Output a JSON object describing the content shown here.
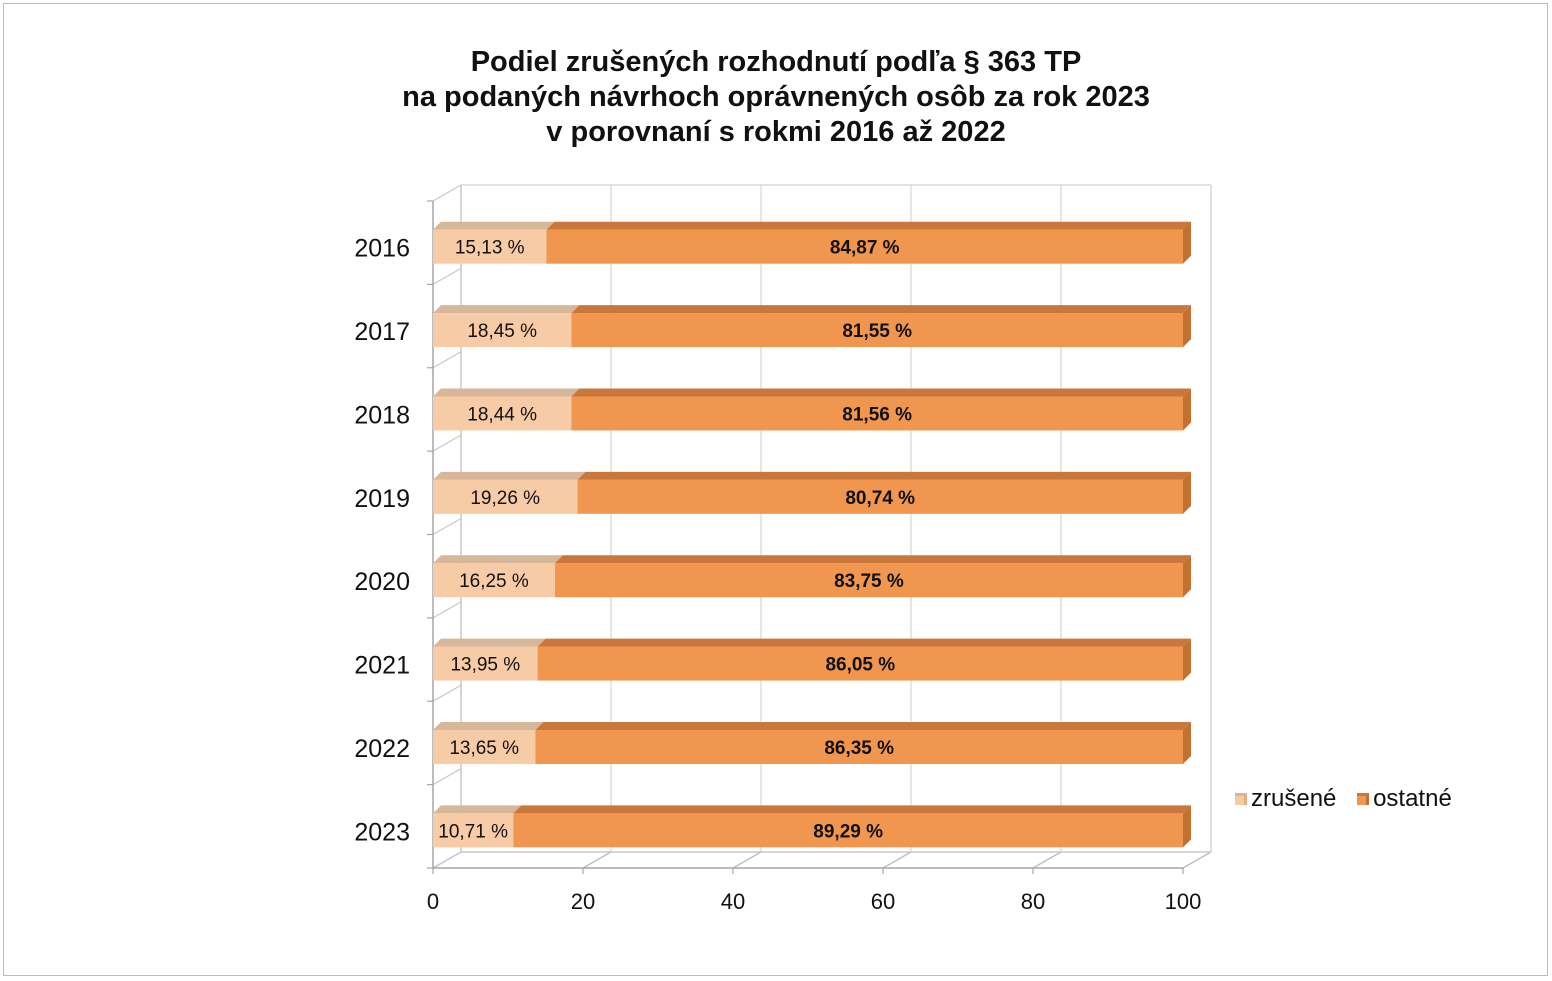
{
  "chart_data": {
    "type": "bar",
    "orientation": "horizontal",
    "stacked": true,
    "title_lines": [
      "Podiel zrušených rozhodnutí podľa § 363 TP",
      "na podaných návrhoch oprávnených osôb za rok 2023",
      "v porovnaní s rokmi 2016 až 2022"
    ],
    "categories": [
      "2016",
      "2017",
      "2018",
      "2019",
      "2020",
      "2021",
      "2022",
      "2023"
    ],
    "series": [
      {
        "name": "zrušené",
        "values": [
          15.13,
          18.45,
          18.44,
          19.26,
          16.25,
          13.95,
          13.65,
          10.71
        ],
        "labels": [
          "15,13 %",
          "18,45 %",
          "18,44 %",
          "19,26 %",
          "16,25 %",
          "13,95 %",
          "13,65 %",
          "10,71 %"
        ],
        "color": "#f8cba7"
      },
      {
        "name": "ostatné",
        "values": [
          84.87,
          81.55,
          81.56,
          80.74,
          83.75,
          86.05,
          86.35,
          89.29
        ],
        "labels": [
          "84,87 %",
          "81,55 %",
          "81,56 %",
          "80,74 %",
          "83,75 %",
          "86,05 %",
          "86,35 %",
          "89,29 %"
        ],
        "color": "#f0964e"
      }
    ],
    "xlim": [
      0,
      100
    ],
    "xticks": [
      "0",
      "20",
      "40",
      "60",
      "80",
      "100"
    ],
    "grid": true,
    "legend_position": "right",
    "three_d": true
  }
}
